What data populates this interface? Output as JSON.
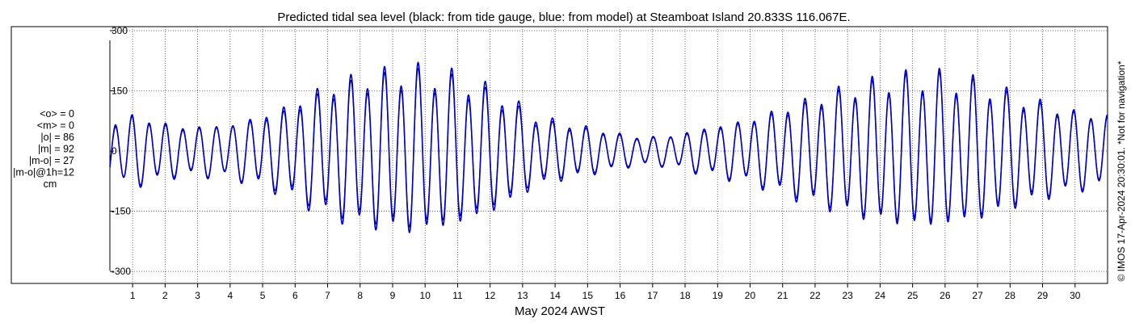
{
  "chart_data": {
    "type": "line",
    "title": "Predicted tidal sea level (black: from tide gauge, blue: from model) at Steamboat Island 20.833S 116.067E.",
    "xlabel": "May 2024 AWST",
    "ylabel": "",
    "xlim": [
      0.3,
      31.0
    ],
    "ylim": [
      -330,
      310
    ],
    "yticks": [
      -300,
      -150,
      0,
      150,
      300
    ],
    "ytick_labels": [
      "-300",
      "-150",
      "0",
      "150",
      "300"
    ],
    "xticks": [
      1,
      2,
      3,
      4,
      5,
      6,
      7,
      8,
      9,
      10,
      11,
      12,
      13,
      14,
      15,
      16,
      17,
      18,
      19,
      20,
      21,
      22,
      23,
      24,
      25,
      26,
      27,
      28,
      29,
      30
    ],
    "xtick_labels": [
      "1",
      "2",
      "3",
      "4",
      "5",
      "6",
      "7",
      "8",
      "9",
      "10",
      "11",
      "12",
      "13",
      "14",
      "15",
      "16",
      "17",
      "18",
      "19",
      "20",
      "21",
      "22",
      "23",
      "24",
      "25",
      "26",
      "27",
      "28",
      "29",
      "30"
    ],
    "grid": true,
    "series": [
      {
        "color": "#000080",
        "amplitude_envelope": [
          [
            0.3,
            80
          ],
          [
            1.0,
            90
          ],
          [
            2.5,
            60
          ],
          [
            4.0,
            68
          ],
          [
            5.5,
            100
          ],
          [
            7.0,
            160
          ],
          [
            8.0,
            185
          ],
          [
            9.6,
            205
          ],
          [
            11.0,
            185
          ],
          [
            12.3,
            140
          ],
          [
            13.5,
            80
          ],
          [
            15.2,
            55
          ],
          [
            16.5,
            35
          ],
          [
            17.5,
            38
          ],
          [
            18.5,
            55
          ],
          [
            20.0,
            80
          ],
          [
            21.5,
            120
          ],
          [
            23.0,
            160
          ],
          [
            24.3,
            185
          ],
          [
            25.6,
            195
          ],
          [
            27.0,
            175
          ],
          [
            28.5,
            130
          ],
          [
            30.0,
            100
          ],
          [
            31.0,
            90
          ]
        ]
      },
      {
        "color": "#0000cd",
        "amplitude_envelope": [
          [
            0.3,
            70
          ],
          [
            1.0,
            95
          ],
          [
            2.5,
            65
          ],
          [
            4.0,
            70
          ],
          [
            5.5,
            110
          ],
          [
            7.0,
            175
          ],
          [
            8.0,
            200
          ],
          [
            9.6,
            220
          ],
          [
            11.0,
            200
          ],
          [
            12.3,
            155
          ],
          [
            13.5,
            90
          ],
          [
            15.2,
            60
          ],
          [
            16.5,
            38
          ],
          [
            17.5,
            40
          ],
          [
            18.5,
            60
          ],
          [
            20.0,
            85
          ],
          [
            21.5,
            130
          ],
          [
            23.0,
            170
          ],
          [
            24.3,
            195
          ],
          [
            25.6,
            205
          ],
          [
            27.0,
            185
          ],
          [
            28.5,
            140
          ],
          [
            30.0,
            105
          ],
          [
            31.0,
            95
          ]
        ]
      }
    ]
  },
  "stats": [
    "<o> = 0",
    "<m> = 0",
    "|o| = 86",
    "|m| = 92",
    "|m-o| = 27",
    "|m-o|@1h=12",
    "cm"
  ],
  "credit": "© IMOS 17-Apr-2024 20:30:01. *Not for navigation*"
}
